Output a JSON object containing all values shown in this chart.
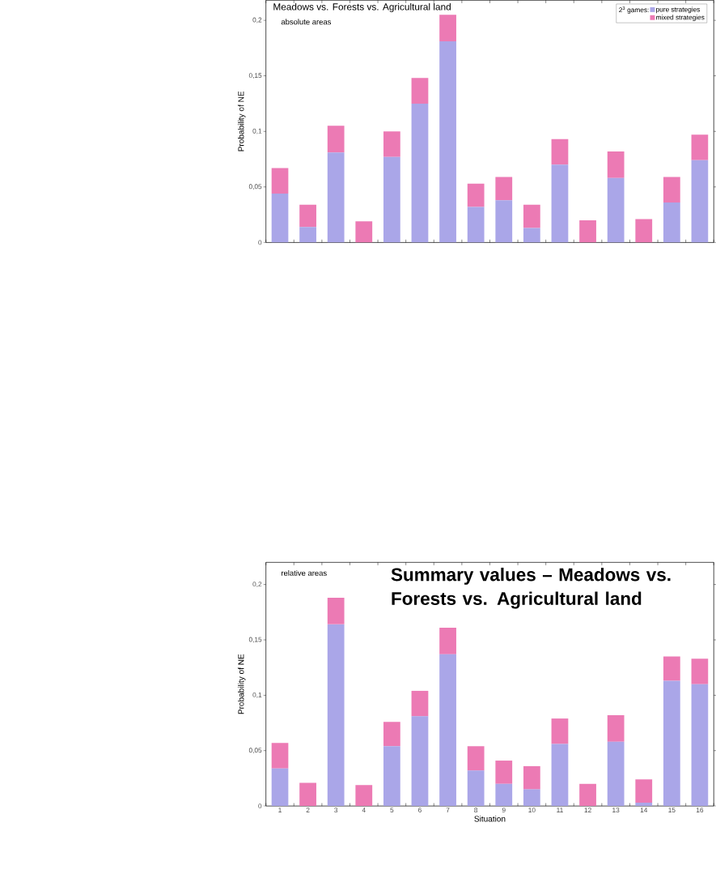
{
  "chart_data": [
    {
      "type": "bar",
      "title": "Meadows vs. Forests vs. Agricultural land",
      "subtitle": "absolute areas",
      "ylabel": "Probability of NE",
      "stacked": true,
      "categories": [
        "1",
        "2",
        "3",
        "4",
        "5",
        "6",
        "7",
        "8",
        "9",
        "10",
        "11",
        "12",
        "13",
        "14",
        "15",
        "16"
      ],
      "legend_title": "2$^{3}$ games:",
      "legend": "top right",
      "tick_labels": "y",
      "ylim": [
        0,
        0.218
      ],
      "yticks": [
        {
          "value": 0,
          "label": "0"
        },
        {
          "value": 0.05,
          "label": "0,05"
        },
        {
          "value": 0.1,
          "label": "0,1"
        },
        {
          "value": 0.15,
          "label": "0,15"
        },
        {
          "value": 0.2,
          "label": "0,2"
        }
      ],
      "series": [
        {
          "name": "pure strategies",
          "color": "#aaa6e8",
          "values": [
            0.044,
            0.014,
            0.081,
            0,
            0.077,
            0.125,
            0.181,
            0.032,
            0.038,
            0.013,
            0.07,
            0,
            0.058,
            0,
            0.036,
            0.074
          ]
        },
        {
          "name": "mixed strategies",
          "color": "#ec7ab4",
          "values": [
            0.023,
            0.02,
            0.024,
            0.019,
            0.023,
            0.023,
            0.024,
            0.021,
            0.021,
            0.021,
            0.023,
            0.02,
            0.024,
            0.021,
            0.023,
            0.023
          ]
        }
      ]
    },
    {
      "type": "bar",
      "subtitle": "relative areas",
      "ylabel": "Probability of NE",
      "xlabel": "Situation",
      "stacked": true,
      "categories": [
        "1",
        "2",
        "3",
        "4",
        "5",
        "6",
        "7",
        "8",
        "9",
        "10",
        "11",
        "12",
        "13",
        "14",
        "15",
        "16"
      ],
      "annotations": [
        "Summary values – Meadows vs. Forests vs. Agricultural land"
      ],
      "ylim": [
        0,
        0.22
      ],
      "yticks": [
        {
          "value": 0,
          "label": "0"
        },
        {
          "value": 0.05,
          "label": "0,05"
        },
        {
          "value": 0.1,
          "label": "0,1"
        },
        {
          "value": 0.15,
          "label": "0,15"
        },
        {
          "value": 0.2,
          "label": "0,2"
        }
      ],
      "series": [
        {
          "color": "#aaa6e8",
          "values": [
            0.034,
            0,
            0.164,
            0,
            0.054,
            0.081,
            0.137,
            0.032,
            0.02,
            0.015,
            0.056,
            0,
            0.058,
            0.003,
            0.113,
            0.11
          ]
        },
        {
          "color": "#ec7ab4",
          "values": [
            0.023,
            0.021,
            0.024,
            0.019,
            0.022,
            0.023,
            0.024,
            0.022,
            0.021,
            0.021,
            0.023,
            0.02,
            0.024,
            0.021,
            0.022,
            0.023
          ]
        }
      ]
    }
  ]
}
